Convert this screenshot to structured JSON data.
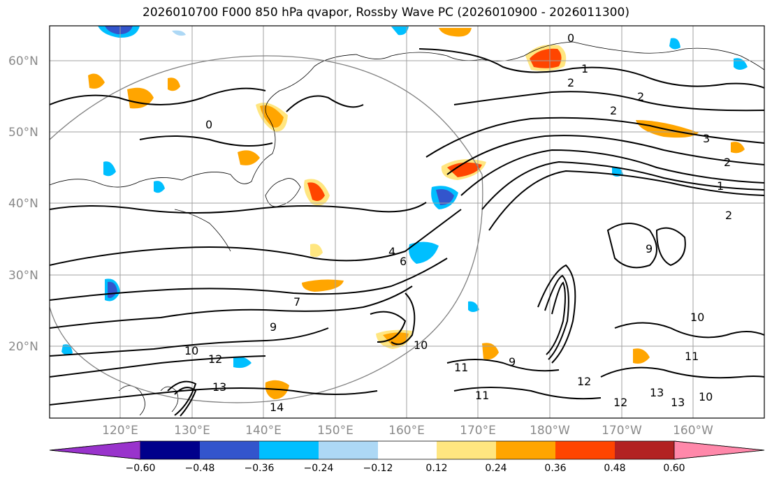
{
  "title": "2026010700 F000 850 hPa qvapor, Rossby Wave PC (2026010900 - 2026011300)",
  "lat_labels": [
    "60°N",
    "50°N",
    "40°N",
    "30°N",
    "20°N"
  ],
  "lon_labels": [
    "120°E",
    "130°E",
    "140°E",
    "150°E",
    "160°E",
    "170°E",
    "180°W",
    "170°W",
    "160°W"
  ],
  "colorbar": {
    "labels": [
      "−0.60",
      "−0.48",
      "−0.36",
      "−0.24",
      "−0.12",
      "0.12",
      "0.24",
      "0.36",
      "0.48",
      "0.60"
    ],
    "colors": [
      "#9933cc",
      "#00008b",
      "#3355cc",
      "#00bfff",
      "#add8f5",
      "#ffffff",
      "#ffe680",
      "#ffa500",
      "#ff4500",
      "#b22222",
      "#ff88aa"
    ]
  },
  "contour_labels": [
    "0",
    "0",
    "1",
    "2",
    "2",
    "2",
    "3",
    "2",
    "1",
    "2",
    "4",
    "6",
    "7",
    "9",
    "10",
    "10",
    "10",
    "12",
    "13",
    "14",
    "11",
    "11",
    "9",
    "12",
    "12",
    "13",
    "13",
    "10",
    "11",
    "9"
  ]
}
